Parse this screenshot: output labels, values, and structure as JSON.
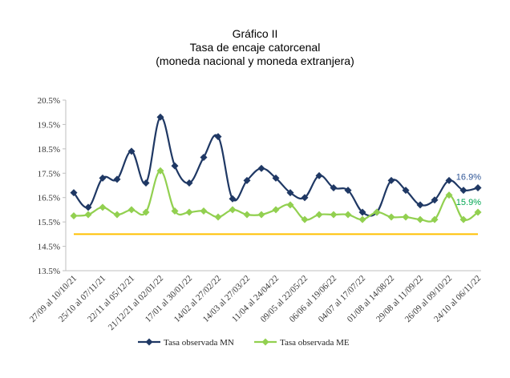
{
  "chart_data": {
    "type": "line",
    "title": "Gráfico II",
    "subtitle": "Tasa de encaje catorcenal",
    "subtitle2": "(moneda nacional y moneda extranjera)",
    "ylim": [
      13.5,
      20.5
    ],
    "yticks": [
      "20.5%",
      "19.5%",
      "18.5%",
      "17.5%",
      "16.5%",
      "15.5%",
      "14.5%",
      "13.5%"
    ],
    "ytick_values": [
      20.5,
      19.5,
      18.5,
      17.5,
      16.5,
      15.5,
      14.5,
      13.5
    ],
    "categories": [
      "27/09 al 10/10/21",
      "",
      "25/10 al 07/11/21",
      "",
      "22/11 al 05/12/21",
      "",
      "21/12/21 al 02/01/22",
      "",
      "17/01 al 30/01/22",
      "",
      "14/02 al 27/02/22",
      "",
      "14/03 al 27/03/22",
      "",
      "11/04 al 24/04/22",
      "",
      "09/05 al 22/05/22",
      "",
      "06/06 al 19/06/22",
      "",
      "04/07 al 17/07/22",
      "",
      "01/08 al 14/08/22",
      "",
      "29/08 al 11/09/22",
      "",
      "26/09 al 09/10/22",
      "",
      "24/10 al 06/11/22"
    ],
    "series": [
      {
        "name": "Tasa observada MN",
        "color": "#1f3864",
        "marker": "diamond",
        "values": [
          16.7,
          16.1,
          17.3,
          17.25,
          18.4,
          17.1,
          19.8,
          17.8,
          17.1,
          18.15,
          19.0,
          16.45,
          17.2,
          17.7,
          17.3,
          16.7,
          16.5,
          17.4,
          16.9,
          16.8,
          15.9,
          15.9,
          17.2,
          16.8,
          16.2,
          16.4,
          17.2,
          16.8,
          16.9
        ],
        "end_label": "16.9%"
      },
      {
        "name": "Tasa observada ME",
        "color": "#92d050",
        "marker": "diamond",
        "values": [
          15.75,
          15.8,
          16.1,
          15.8,
          16.0,
          15.9,
          17.6,
          15.95,
          15.9,
          15.95,
          15.7,
          16.0,
          15.8,
          15.8,
          16.0,
          16.2,
          15.6,
          15.8,
          15.8,
          15.8,
          15.6,
          15.9,
          15.7,
          15.7,
          15.6,
          15.6,
          16.6,
          15.6,
          15.9
        ],
        "end_label": "15.9%"
      },
      {
        "color": "#ffc000",
        "marker": "none",
        "values": [
          15.0,
          15.0,
          15.0,
          15.0,
          15.0,
          15.0,
          15.0,
          15.0,
          15.0,
          15.0,
          15.0,
          15.0,
          15.0,
          15.0,
          15.0,
          15.0,
          15.0,
          15.0,
          15.0,
          15.0,
          15.0,
          15.0,
          15.0,
          15.0,
          15.0,
          15.0,
          15.0,
          15.0,
          15.0
        ]
      }
    ],
    "grid": false,
    "legend": "bottom"
  }
}
